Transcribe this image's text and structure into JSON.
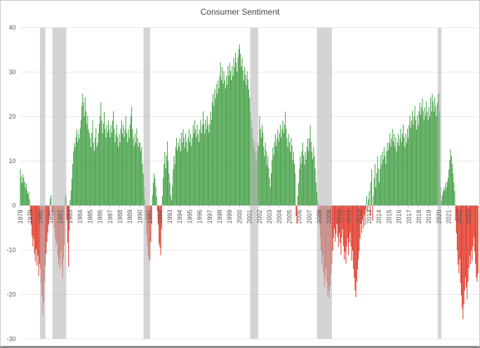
{
  "title": "Consumer Sentiment",
  "chart_data": {
    "type": "bar",
    "title": "Consumer Sentiment",
    "xlabel": "",
    "ylabel": "",
    "ylim": [
      -30,
      40
    ],
    "yticks": [
      40,
      30,
      20,
      10,
      0,
      -10,
      -20,
      -30
    ],
    "grid": true,
    "legend": "none",
    "frequency": "monthly",
    "start_year": 1978,
    "x_tick_labels": [
      "1978",
      "1979",
      "1980",
      "1981",
      "1982",
      "1983",
      "1984",
      "1985",
      "1986",
      "1987",
      "1988",
      "1989",
      "1990",
      "1991",
      "1992",
      "1993",
      "1994",
      "1995",
      "1996",
      "1997",
      "1998",
      "1999",
      "2000",
      "2001",
      "2002",
      "2003",
      "2004",
      "2005",
      "2006",
      "2007",
      "2008",
      "2009",
      "2010",
      "2011",
      "2012",
      "2013",
      "2014",
      "2015",
      "2016",
      "2017",
      "2018",
      "2019",
      "2020",
      "2021",
      "2022",
      "2023"
    ],
    "positive_color": "#4aa34c",
    "negative_color": "#e33b2c",
    "recession_band_color": "#b9b9b9",
    "gridline_color": "#e9e9e9",
    "axis_line_color": "#c2c2c2",
    "tick_label_color": "#595959",
    "title_color": "#444444",
    "recession_bands": [
      [
        1980.0,
        1980.55
      ],
      [
        1981.25,
        1982.65
      ],
      [
        1990.4,
        1991.05
      ],
      [
        2001.1,
        2001.9
      ],
      [
        2007.8,
        2009.3
      ],
      [
        2019.92,
        2020.28
      ]
    ],
    "values": [
      8.2,
      6.5,
      5.1,
      7.0,
      6.3,
      5.4,
      4.1,
      5.0,
      3.4,
      2.6,
      3.1,
      1.4,
      -2.1,
      -4.3,
      -6.8,
      -9.2,
      -7.5,
      -10.8,
      -12.6,
      -9.8,
      -13.5,
      -11.2,
      -15.8,
      -13.1,
      -14.2,
      -17.5,
      -20.3,
      -24.6,
      -21.8,
      -17.2,
      -13.5,
      -10.8,
      -8.2,
      -6.1,
      -4.3,
      -2.2,
      1.6,
      2.3,
      -1.2,
      -3.4,
      -2.1,
      -5.2,
      -7.4,
      -9.1,
      -8.3,
      -11.2,
      -13.4,
      -12.1,
      -14.3,
      -10.2,
      -13.1,
      -16.4,
      -11.8,
      -8.9,
      1.8,
      2.6,
      -3.2,
      -8.4,
      -13.8,
      -5.6,
      1.2,
      3.4,
      6.1,
      9.3,
      12.2,
      14.1,
      13.2,
      15.4,
      17.1,
      14.3,
      16.2,
      15.1,
      17.3,
      19.2,
      22.4,
      25.1,
      23.2,
      20.1,
      24.3,
      21.2,
      18.4,
      20.2,
      17.1,
      16.3,
      15.2,
      13.1,
      16.3,
      19.2,
      14.1,
      12.3,
      15.2,
      17.4,
      13.2,
      14.1,
      16.2,
      18.3,
      20.1,
      23.2,
      19.1,
      16.2,
      18.4,
      21.1,
      17.2,
      15.3,
      18.1,
      16.4,
      19.2,
      17.1,
      15.3,
      18.1,
      16.4,
      19.1,
      21.2,
      17.3,
      14.2,
      16.1,
      18.2,
      15.4,
      13.2,
      16.1,
      14.2,
      17.3,
      19.1,
      16.2,
      18.1,
      15.4,
      17.2,
      20.1,
      16.3,
      14.2,
      17.1,
      15.2,
      18.2,
      20.1,
      22.3,
      17.2,
      15.1,
      13.4,
      16.2,
      14.1,
      17.3,
      15.2,
      13.1,
      14.2,
      14.1,
      12.3,
      13.2,
      9.4,
      7.1,
      4.2,
      1.3,
      -3.2,
      -6.4,
      -9.1,
      -11.3,
      -12.2,
      -12.4,
      -8.2,
      -4.1,
      2.3,
      5.1,
      7.2,
      6.1,
      4.3,
      2.1,
      -1.2,
      -4.3,
      -8.6,
      -9.4,
      -11.2,
      -5.3,
      2.1,
      6.2,
      9.4,
      12.1,
      8.3,
      11.2,
      14.4,
      10.1,
      7.2,
      5.1,
      2.3,
      1.2,
      4.4,
      8.1,
      11.2,
      9.3,
      13.1,
      15.2,
      12.4,
      14.1,
      13.2,
      15.1,
      12.2,
      16.4,
      14.1,
      17.2,
      15.3,
      13.1,
      16.2,
      14.4,
      12.1,
      15.2,
      17.1,
      14.2,
      16.1,
      13.4,
      15.2,
      18.1,
      16.3,
      19.2,
      17.1,
      15.4,
      18.2,
      16.1,
      14.3,
      17.1,
      19.2,
      16.3,
      18.1,
      21.2,
      18.4,
      16.1,
      19.3,
      17.2,
      20.1,
      18.2,
      16.4,
      18.2,
      21.1,
      19.3,
      23.2,
      25.1,
      22.4,
      26.2,
      24.1,
      27.3,
      25.2,
      28.1,
      26.3,
      29.1,
      32.2,
      28.3,
      31.1,
      27.4,
      30.2,
      28.1,
      26.3,
      29.2,
      27.1,
      31.4,
      29.2,
      32.1,
      30.3,
      28.2,
      31.4,
      29.1,
      33.2,
      31.1,
      34.3,
      32.2,
      30.1,
      33.4,
      35.2,
      36.2,
      34.1,
      31.3,
      33.2,
      30.4,
      28.1,
      31.2,
      29.3,
      27.1,
      30.2,
      28.4,
      26.1,
      24.2,
      21.3,
      19.1,
      17.4,
      15.2,
      13.1,
      14.3,
      12.2,
      10.1,
      12.3,
      14.2,
      13.4,
      20.1,
      17.2,
      15.3,
      18.1,
      16.4,
      13.2,
      11.1,
      14.2,
      12.3,
      9.1,
      11.2,
      8.4,
      6.2,
      4.1,
      7.3,
      10.2,
      13.1,
      11.4,
      14.2,
      16.1,
      13.3,
      15.2,
      17.1,
      14.4,
      16.2,
      18.1,
      15.3,
      17.2,
      19.1,
      16.4,
      18.2,
      21.1,
      17.3,
      15.1,
      13.2,
      16.1,
      14.3,
      12.1,
      15.2,
      13.4,
      10.2,
      12.1,
      9.3,
      7.2,
      -2.4,
      -4.1,
      2.2,
      5.1,
      8.2,
      11.1,
      9.4,
      12.2,
      14.1,
      11.3,
      9.2,
      12.1,
      10.4,
      13.2,
      15.1,
      12.3,
      15.1,
      18.2,
      14.3,
      12.1,
      10.4,
      13.2,
      11.1,
      8.3,
      5.2,
      3.1,
      1.2,
      -2.3,
      -4.4,
      -7.2,
      -10.1,
      -13.3,
      -11.2,
      -15.1,
      -18.4,
      -16.2,
      -14.1,
      -17.3,
      -20.2,
      -19.1,
      -20.8,
      -18.1,
      -15.4,
      -13.2,
      -10.1,
      -7.3,
      -5.2,
      -8.1,
      -6.4,
      -4.2,
      -7.1,
      -9.3,
      -6.2,
      -8.4,
      -11.1,
      -7.2,
      -5.3,
      -9.1,
      -12.2,
      -10.4,
      -13.1,
      -9.2,
      -7.3,
      -11.1,
      -8.3,
      -6.1,
      -9.2,
      -12.4,
      -10.1,
      -14.2,
      -16.3,
      -19.1,
      -20.6,
      -17.2,
      -14.4,
      -12.1,
      -10.2,
      -7.4,
      -4.1,
      -6.2,
      -3.3,
      -5.1,
      -2.2,
      -4.4,
      -1.1,
      2.2,
      -1.3,
      1.4,
      3.2,
      -2.1,
      5.3,
      8.1,
      -3.4,
      2.1,
      6.2,
      9.4,
      4.1,
      7.2,
      11.1,
      8.3,
      5.2,
      8.1,
      11.3,
      9.2,
      12.1,
      10.4,
      13.2,
      11.1,
      9.3,
      12.2,
      14.1,
      12.4,
      14.1,
      16.2,
      13.3,
      15.1,
      17.2,
      14.4,
      16.1,
      13.2,
      15.3,
      12.1,
      14.2,
      16.1,
      13.4,
      15.1,
      17.2,
      14.3,
      16.1,
      18.2,
      15.4,
      13.1,
      16.2,
      14.1,
      17.3,
      15.2,
      18.1,
      20.2,
      17.4,
      19.1,
      21.3,
      18.2,
      20.1,
      22.4,
      19.2,
      17.1,
      20.3,
      18.1,
      21.2,
      23.1,
      20.4,
      22.2,
      24.1,
      21.3,
      19.2,
      22.1,
      20.2,
      23.4,
      21.1,
      19.3,
      22.2,
      20.1,
      24.3,
      21.2,
      25.1,
      23.4,
      21.1,
      24.2,
      22.3,
      20.2,
      23.1,
      25.2,
      25.3,
      21.1,
      4.2,
      1.1,
      2.3,
      3.2,
      4.1,
      3.4,
      5.2,
      4.1,
      5.3,
      6.2,
      8.1,
      10.2,
      12.6,
      11.1,
      9.3,
      7.2,
      5.1,
      3.2,
      -3.4,
      -6.2,
      -10.1,
      -13.3,
      -15.2,
      -12.1,
      -17.4,
      -20.2,
      -23.1,
      -25.6,
      -22.3,
      -19.1,
      -16.2,
      -18.4,
      -21.1,
      -17.2,
      -14.1,
      -11.3,
      -13.2,
      -10.1,
      -12.4,
      -9.2,
      -7.1,
      -10.3,
      -13.1,
      -16.2,
      -17.1,
      -15.3
    ]
  }
}
